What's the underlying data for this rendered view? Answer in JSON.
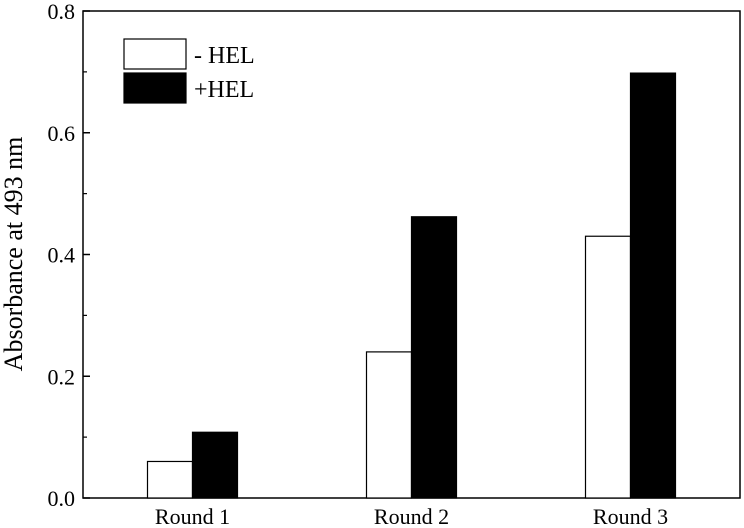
{
  "chart_data": {
    "type": "bar",
    "title": "",
    "xlabel": "",
    "ylabel": "Absorbance at 493 nm",
    "ylim": [
      0,
      0.8
    ],
    "yticks": [
      0.0,
      0.2,
      0.4,
      0.6,
      0.8
    ],
    "ytick_labels": [
      "0.0",
      "0.2",
      "0.4",
      "0.6",
      "0.8"
    ],
    "categories": [
      "Round 1",
      "Round 2",
      "Round 3"
    ],
    "series": [
      {
        "name": "- HEL",
        "fill": "#ffffff",
        "stroke": "#000000",
        "values": [
          0.06,
          0.24,
          0.43
        ]
      },
      {
        "name": "+HEL",
        "fill": "#000000",
        "stroke": "#000000",
        "values": [
          0.108,
          0.462,
          0.698
        ]
      }
    ],
    "grid": false,
    "legend_position": "top-left"
  }
}
